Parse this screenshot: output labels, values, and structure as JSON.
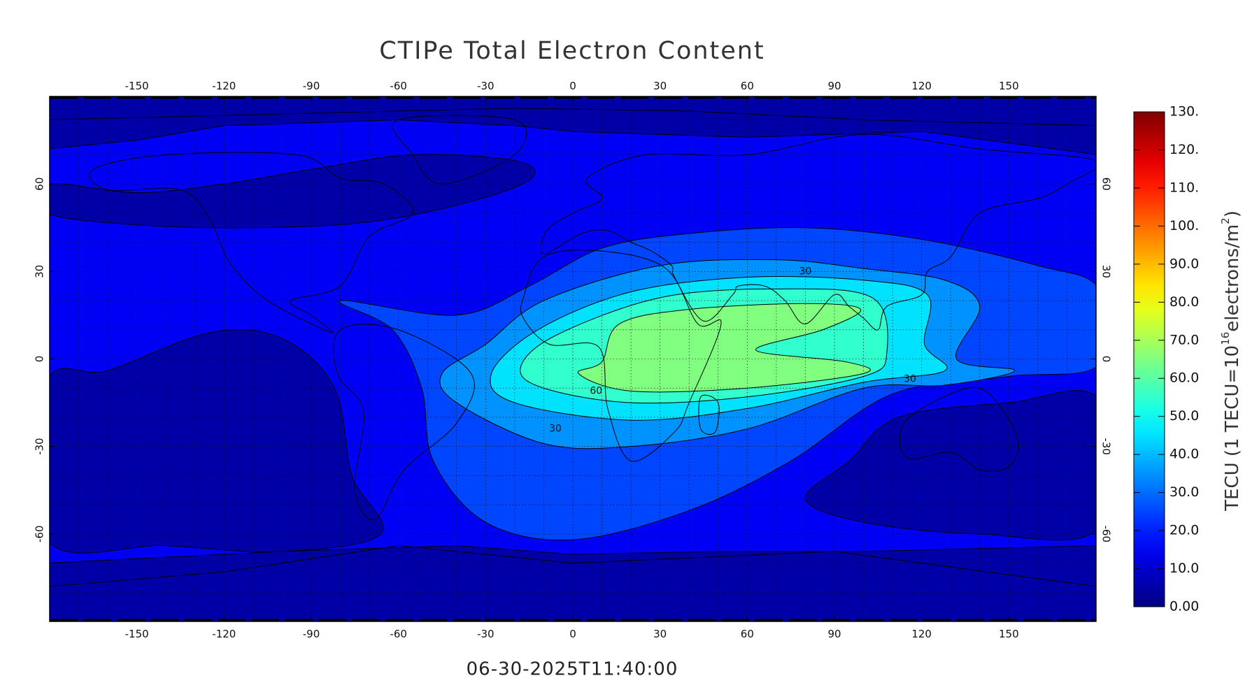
{
  "chart_data": {
    "type": "contour_map",
    "title": "CTIPe Total Electron Content",
    "timestamp": "06-30-2025T11:40:00",
    "xlim": [
      -180,
      180
    ],
    "ylim": [
      -90,
      90
    ],
    "xticks": [
      -150,
      -120,
      -90,
      -60,
      -30,
      0,
      30,
      60,
      90,
      120,
      150
    ],
    "yticks": [
      -60,
      -30,
      0,
      30,
      60
    ],
    "grid": true,
    "grid_spacing": 10,
    "contour_levels": [
      0,
      10,
      20,
      30,
      40,
      50,
      60
    ],
    "colorbar": {
      "label": [
        "TECU (1 TECU=10",
        "16",
        "electrons/m",
        "2",
        ")"
      ],
      "clim": [
        0,
        130
      ],
      "colormap": "jet",
      "ticks": [
        {
          "value": 0,
          "label": "0.00"
        },
        {
          "value": 10,
          "label": "10.0"
        },
        {
          "value": 20,
          "label": "20.0"
        },
        {
          "value": 30,
          "label": "30.0"
        },
        {
          "value": 40,
          "label": "40.0"
        },
        {
          "value": 50,
          "label": "50.0"
        },
        {
          "value": 60,
          "label": "60.0"
        },
        {
          "value": 70,
          "label": "70.0"
        },
        {
          "value": 80,
          "label": "80.0"
        },
        {
          "value": 90,
          "label": "90.0"
        },
        {
          "value": 100,
          "label": "100."
        },
        {
          "value": 110,
          "label": "110."
        },
        {
          "value": 120,
          "label": "120."
        },
        {
          "value": 130,
          "label": "130."
        }
      ]
    }
  }
}
